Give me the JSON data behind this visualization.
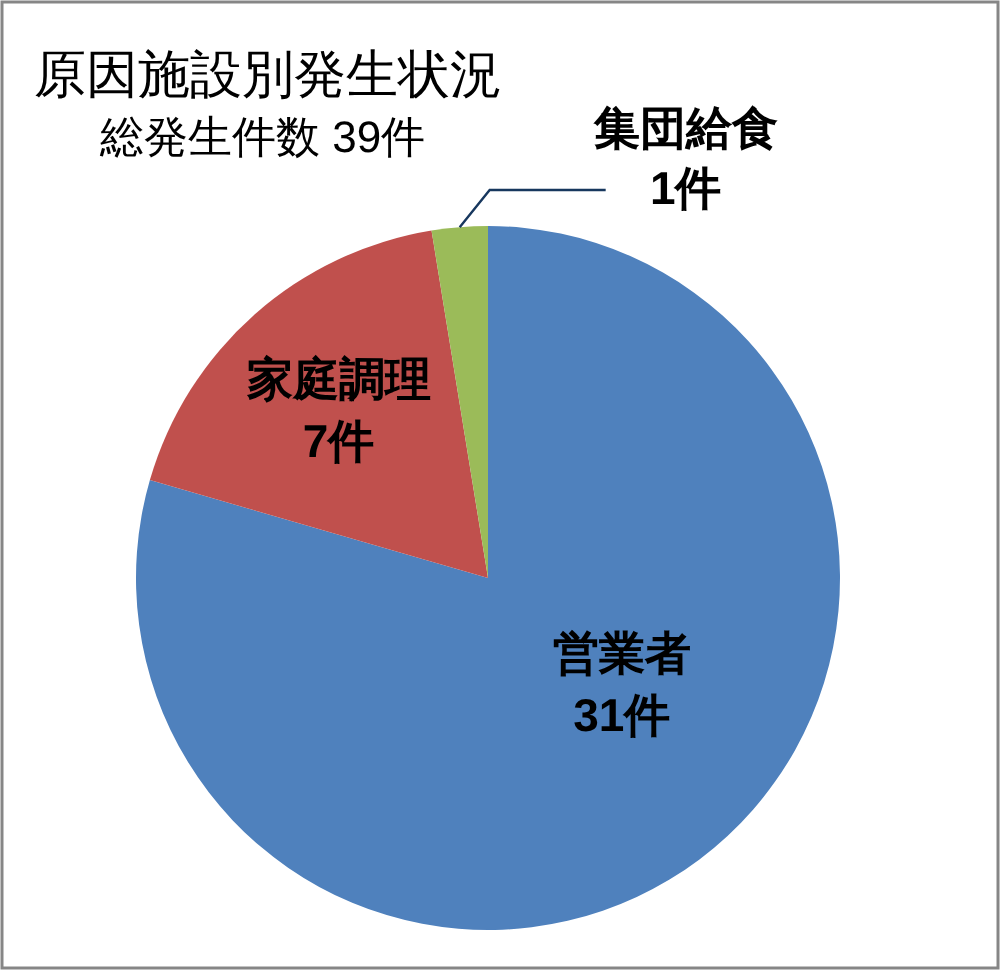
{
  "chart_data": {
    "type": "pie",
    "title": "原因施設別発生状況",
    "subtitle": "総発生件数 39件",
    "categories": [
      "営業者",
      "家庭調理",
      "集団給食"
    ],
    "values": [
      31,
      7,
      1
    ],
    "colors": [
      "#4f81bd",
      "#c0504d",
      "#9bbb59"
    ],
    "value_labels": [
      "31件",
      "7件",
      "1件"
    ]
  }
}
